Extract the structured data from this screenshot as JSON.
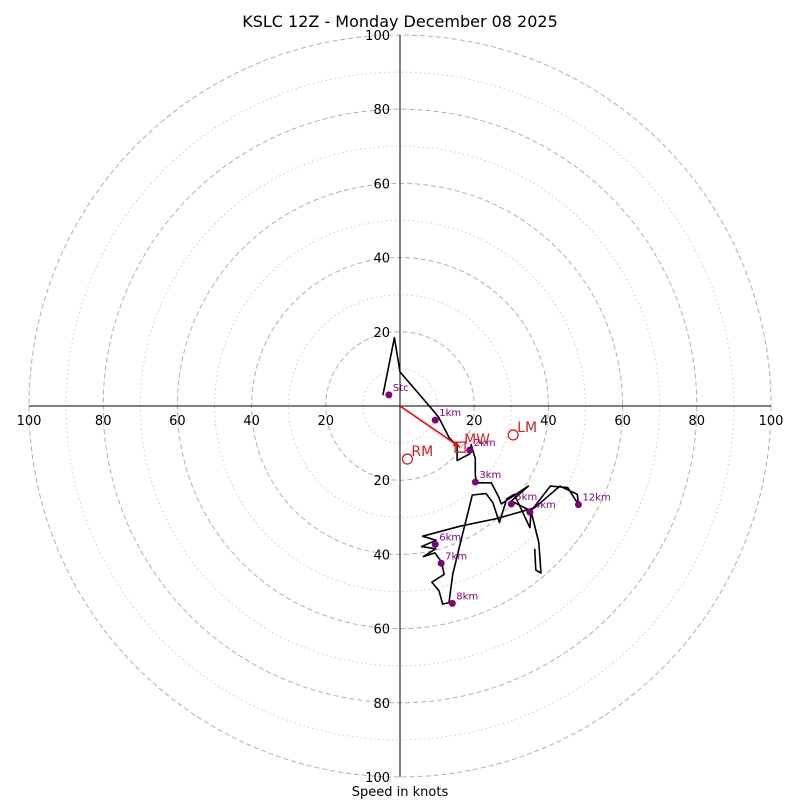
{
  "chart_data": {
    "type": "hodograph",
    "title": "KSLC 12Z - Monday December 08 2025",
    "xlabel": "Speed in knots",
    "ring_major": [
      20,
      40,
      60,
      80,
      100
    ],
    "ring_minor": [
      10,
      30,
      50,
      70,
      90
    ],
    "axis_ticks": {
      "left": [
        "100",
        "80",
        "60",
        "40",
        "20"
      ],
      "right": [
        "20",
        "40",
        "60",
        "80",
        "100"
      ],
      "top": [
        "20",
        "40",
        "60",
        "80",
        "100"
      ],
      "bottom": [
        "20",
        "40",
        "60",
        "80",
        "100"
      ],
      "values": [
        20,
        40,
        60,
        80,
        100
      ]
    },
    "range": [
      -100,
      100
    ],
    "hodograph_units": "u/v components in knots",
    "hodograph": [
      [
        -4.6,
        2.9
      ],
      [
        -1.5,
        18.4
      ],
      [
        0,
        9.2
      ],
      [
        9.2,
        -1.5
      ],
      [
        10.4,
        -3.0
      ],
      [
        13.2,
        -8.5
      ],
      [
        15.4,
        -10.8
      ],
      [
        15.4,
        -14.7
      ],
      [
        18.8,
        -12.9
      ],
      [
        19.2,
        -10.4
      ],
      [
        20.3,
        -14.2
      ],
      [
        20.3,
        -18.5
      ],
      [
        20.6,
        -20.7
      ],
      [
        24.6,
        -20.7
      ],
      [
        26.5,
        -24.3
      ],
      [
        27.3,
        -26.4
      ],
      [
        34.6,
        -21.6
      ],
      [
        30.0,
        -25.6
      ],
      [
        35.3,
        -28.3
      ],
      [
        35.0,
        -32.8
      ],
      [
        30.8,
        -23.8
      ],
      [
        28.8,
        -25.0
      ],
      [
        26.8,
        -31.4
      ],
      [
        25.0,
        -26.0
      ],
      [
        23.2,
        -23.6
      ],
      [
        19.5,
        -24.0
      ],
      [
        18.0,
        -30.0
      ],
      [
        16.5,
        -36.0
      ],
      [
        14.2,
        -45.4
      ],
      [
        13.2,
        -53.0
      ],
      [
        11.5,
        -53.4
      ],
      [
        10.5,
        -49.8
      ],
      [
        8.6,
        -47.5
      ],
      [
        11.9,
        -45.4
      ],
      [
        11.2,
        -42.1
      ],
      [
        9.4,
        -39.6
      ],
      [
        6.3,
        -40.6
      ],
      [
        9.6,
        -38.5
      ],
      [
        5.8,
        -37.9
      ],
      [
        9.7,
        -36.2
      ],
      [
        6.1,
        -35.1
      ],
      [
        16.2,
        -32.4
      ],
      [
        26.3,
        -30.3
      ],
      [
        36.3,
        -27.4
      ],
      [
        40.5,
        -23.8
      ],
      [
        43.1,
        -21.6
      ],
      [
        47.8,
        -23.8
      ],
      [
        48.1,
        -26.6
      ],
      [
        45.2,
        -22.0
      ],
      [
        40.5,
        -21.6
      ],
      [
        35.3,
        -28.3
      ],
      [
        37.4,
        -36.8
      ],
      [
        38.0,
        -45.0
      ],
      [
        36.6,
        -44.2
      ],
      [
        36.3,
        -38.5
      ]
    ],
    "height_points": [
      {
        "label": "Stc",
        "u": -3,
        "v": 3
      },
      {
        "label": "1km",
        "u": 9.5,
        "v": -3.8
      },
      {
        "label": "2km",
        "u": 18.8,
        "v": -11.9
      },
      {
        "label": "3km",
        "u": 20.3,
        "v": -20.5
      },
      {
        "label": "4km",
        "u": 35.0,
        "v": -28.6
      },
      {
        "label": "5km",
        "u": 30.0,
        "v": -26.4
      },
      {
        "label": "6km",
        "u": 9.5,
        "v": -37.3
      },
      {
        "label": "7km",
        "u": 11.1,
        "v": -42.4
      },
      {
        "label": "8km",
        "u": 14.1,
        "v": -53.2
      },
      {
        "label": "12km",
        "u": 48.1,
        "v": -26.6
      }
    ],
    "motions": [
      {
        "label": "RM",
        "u": 2.0,
        "v": -14.3
      },
      {
        "label": "LM",
        "u": 30.5,
        "v": -7.8
      },
      {
        "label": "MW",
        "u": 16.2,
        "v": -11.1
      }
    ],
    "mean_wind_arrow": {
      "from": [
        0,
        0
      ],
      "to": [
        16.2,
        -11.1
      ]
    },
    "colors": {
      "trace": "#000000",
      "height_marker": "#800080",
      "motion": "#cc2222",
      "arrow": "#ff0000",
      "ring": "#b0b0b0",
      "ring_minor": "#cccccc"
    }
  }
}
